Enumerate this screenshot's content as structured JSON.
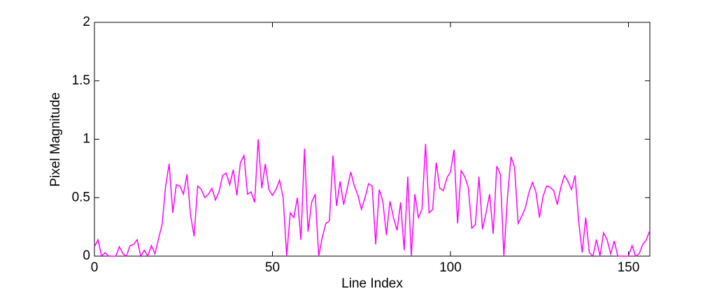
{
  "chart_data": {
    "type": "line",
    "xlabel": "Line Index",
    "ylabel": "Pixel Magnitude",
    "color": "#ff00ff",
    "x": [
      0,
      1,
      2,
      3,
      4,
      5,
      6,
      7,
      8,
      9,
      10,
      11,
      12,
      13,
      14,
      15,
      16,
      17,
      18,
      19,
      20,
      21,
      22,
      23,
      24,
      25,
      26,
      27,
      28,
      29,
      30,
      31,
      32,
      33,
      34,
      35,
      36,
      37,
      38,
      39,
      40,
      41,
      42,
      43,
      44,
      45,
      46,
      47,
      48,
      49,
      50,
      51,
      52,
      53,
      54,
      55,
      56,
      57,
      58,
      59,
      60,
      61,
      62,
      63,
      64,
      65,
      66,
      67,
      68,
      69,
      70,
      71,
      72,
      73,
      74,
      75,
      76,
      77,
      78,
      79,
      80,
      81,
      82,
      83,
      84,
      85,
      86,
      87,
      88,
      89,
      90,
      91,
      92,
      93,
      94,
      95,
      96,
      97,
      98,
      99,
      100,
      101,
      102,
      103,
      104,
      105,
      106,
      107,
      108,
      109,
      110,
      111,
      112,
      113,
      114,
      115,
      116,
      117,
      118,
      119,
      120,
      121,
      122,
      123,
      124,
      125,
      126,
      127,
      128,
      129,
      130,
      131,
      132,
      133,
      134,
      135,
      136,
      137,
      138,
      139,
      140,
      141,
      142,
      143,
      144,
      145,
      146,
      147,
      148,
      149,
      150,
      151,
      152,
      153,
      154,
      155,
      156
    ],
    "values": [
      0.08,
      0.14,
      0.0,
      0.03,
      0.0,
      0.0,
      0.0,
      0.08,
      0.02,
      0.0,
      0.09,
      0.1,
      0.14,
      0.0,
      0.05,
      0.0,
      0.09,
      0.02,
      0.15,
      0.27,
      0.6,
      0.79,
      0.37,
      0.61,
      0.6,
      0.53,
      0.7,
      0.35,
      0.17,
      0.6,
      0.57,
      0.5,
      0.53,
      0.58,
      0.48,
      0.55,
      0.69,
      0.71,
      0.61,
      0.74,
      0.52,
      0.8,
      0.86,
      0.53,
      0.55,
      0.46,
      1.0,
      0.58,
      0.79,
      0.57,
      0.52,
      0.57,
      0.65,
      0.5,
      0.0,
      0.37,
      0.33,
      0.5,
      0.14,
      0.92,
      0.21,
      0.46,
      0.53,
      0.0,
      0.16,
      0.28,
      0.3,
      0.86,
      0.43,
      0.64,
      0.44,
      0.58,
      0.72,
      0.6,
      0.52,
      0.4,
      0.5,
      0.62,
      0.6,
      0.1,
      0.57,
      0.47,
      0.18,
      0.47,
      0.33,
      0.22,
      0.46,
      0.05,
      0.68,
      0.0,
      0.53,
      0.33,
      0.4,
      0.96,
      0.37,
      0.4,
      0.8,
      0.58,
      0.56,
      0.67,
      0.72,
      0.91,
      0.28,
      0.73,
      0.68,
      0.59,
      0.24,
      0.27,
      0.68,
      0.23,
      0.37,
      0.53,
      0.19,
      0.77,
      0.7,
      0.0,
      0.5,
      0.85,
      0.76,
      0.28,
      0.34,
      0.41,
      0.54,
      0.63,
      0.55,
      0.33,
      0.51,
      0.6,
      0.59,
      0.56,
      0.44,
      0.59,
      0.69,
      0.64,
      0.57,
      0.69,
      0.3,
      0.03,
      0.33,
      0.03,
      0.0,
      0.14,
      0.0,
      0.2,
      0.14,
      0.02,
      0.13,
      0.0,
      0.0,
      0.0,
      0.0,
      0.09,
      0.0,
      0.02,
      0.1,
      0.14,
      0.22
    ],
    "xlim": [
      0,
      156
    ],
    "ylim": [
      0,
      2
    ],
    "xticks": [
      0,
      50,
      100,
      150
    ],
    "yticks": [
      0,
      0.5,
      1,
      1.5,
      2
    ]
  }
}
